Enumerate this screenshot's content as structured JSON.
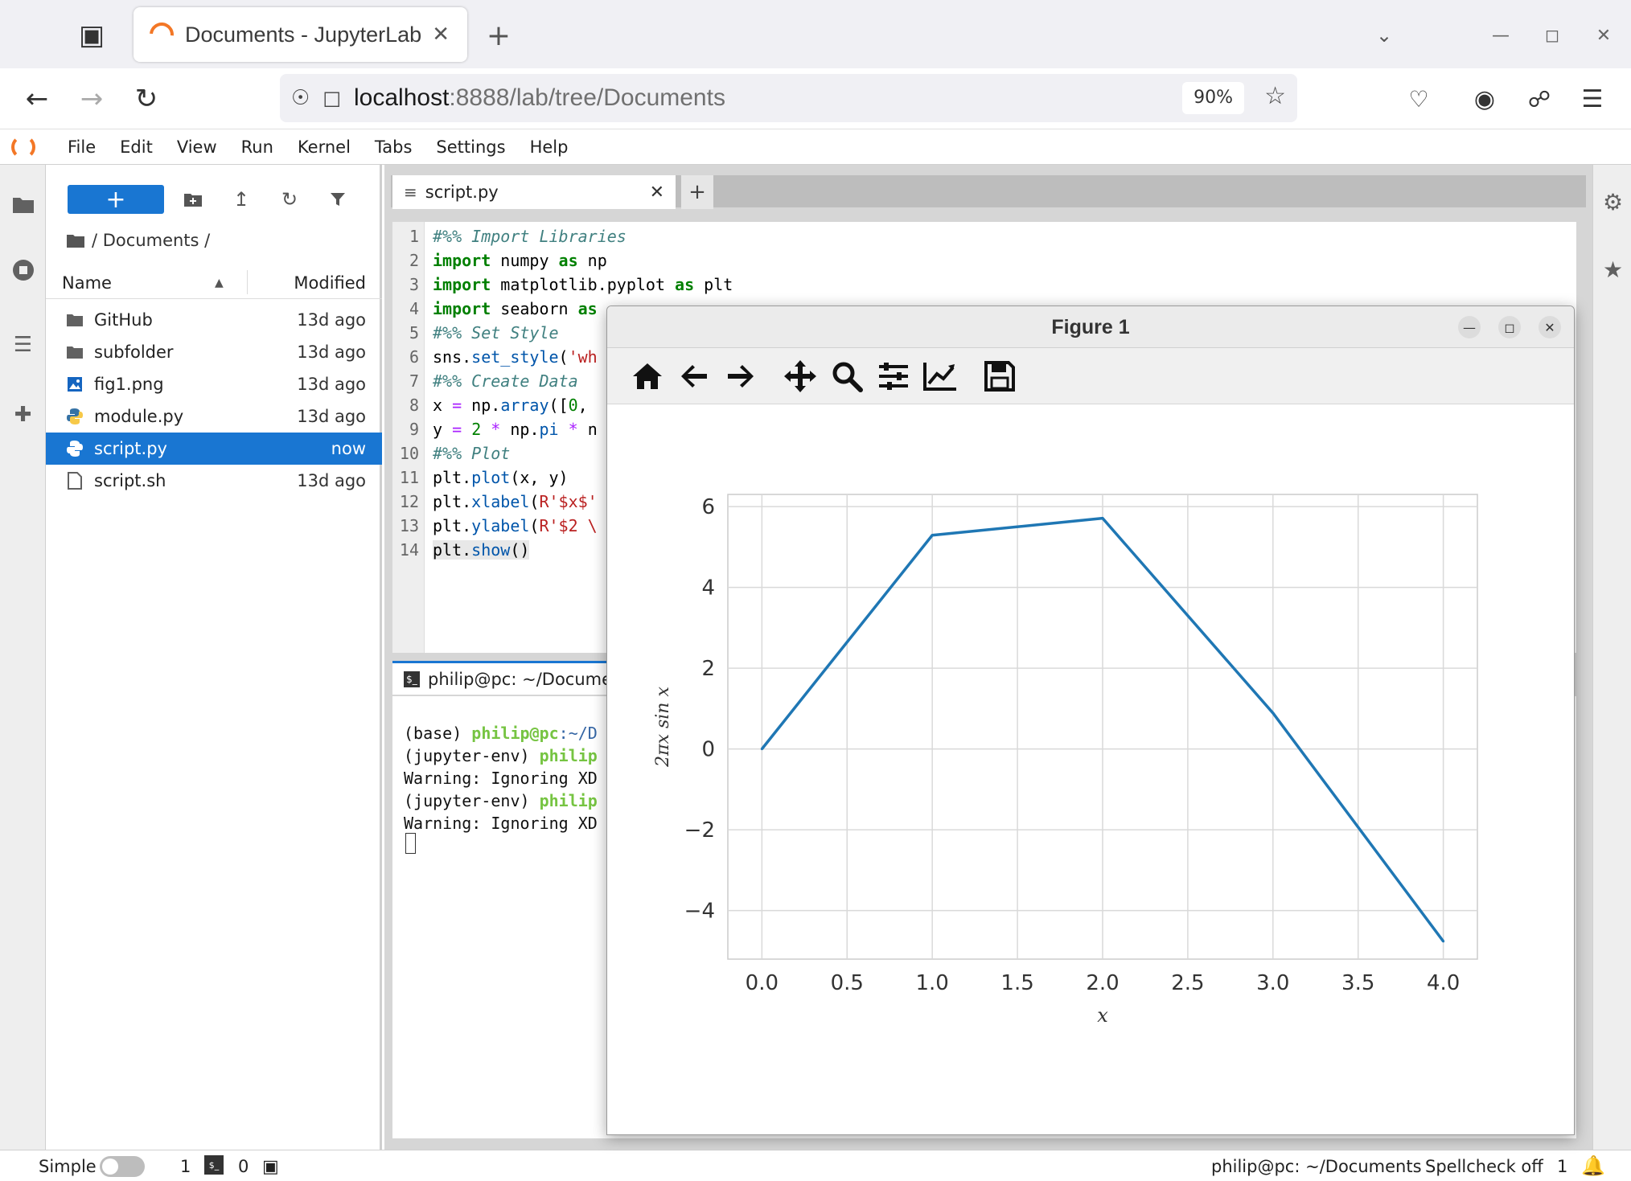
{
  "browser": {
    "tab_title": "Documents - JupyterLab",
    "url_host": "localhost",
    "url_rest": ":8888/lab/tree/Documents",
    "zoom": "90%"
  },
  "menu": [
    "File",
    "Edit",
    "View",
    "Run",
    "Kernel",
    "Tabs",
    "Settings",
    "Help"
  ],
  "filebrowser": {
    "new_label": "+",
    "breadcrumb": "/ Documents /",
    "col_name": "Name",
    "col_modified": "Modified",
    "files": [
      {
        "name": "GitHub",
        "modified": "13d ago",
        "icon": "folder-icon"
      },
      {
        "name": "subfolder",
        "modified": "13d ago",
        "icon": "folder-icon"
      },
      {
        "name": "fig1.png",
        "modified": "13d ago",
        "icon": "image-file-icon"
      },
      {
        "name": "module.py",
        "modified": "13d ago",
        "icon": "python-file-icon"
      },
      {
        "name": "script.py",
        "modified": "now",
        "icon": "python-file-icon",
        "selected": true
      },
      {
        "name": "script.sh",
        "modified": "13d ago",
        "icon": "text-file-icon"
      }
    ]
  },
  "editor": {
    "tab_title": "script.py",
    "line_numbers": [
      "1",
      "2",
      "3",
      "4",
      "5",
      "6",
      "7",
      "8",
      "9",
      "10",
      "11",
      "12",
      "13",
      "14"
    ]
  },
  "terminal": {
    "tab_title": "philip@pc: ~/Documen",
    "lines": [
      {
        "prefix": "(base) ",
        "user": "philip@pc",
        "path": ":~/D",
        "rest": ""
      },
      {
        "prefix": "(jupyter-env) ",
        "user": "philip",
        "path": "",
        "rest": ""
      },
      {
        "prefix": "Warning: Ignoring XD",
        "user": "",
        "path": "",
        "rest": ""
      },
      {
        "prefix": "(jupyter-env) ",
        "user": "philip",
        "path": "",
        "rest": ""
      },
      {
        "prefix": "Warning: Ignoring XD",
        "user": "",
        "path": "",
        "rest": ""
      }
    ]
  },
  "statusbar": {
    "mode": "Simple",
    "terminals_count": "1",
    "kernels_count": "0",
    "path": "philip@pc: ~/Documents",
    "spellcheck": "Spellcheck off",
    "notifications": "1"
  },
  "figure": {
    "window_title": "Figure 1",
    "toolbar": [
      "home-icon",
      "back-arrow-icon",
      "forward-arrow-icon",
      "pan-icon",
      "zoom-icon",
      "configure-subplots-icon",
      "edit-axis-icon",
      "save-icon"
    ]
  },
  "chart_data": {
    "type": "line",
    "x": [
      0.0,
      1.0,
      2.0,
      3.0,
      4.0
    ],
    "series": [
      {
        "values": [
          0.0,
          5.29,
          5.71,
          0.89,
          -4.76
        ],
        "color": "#1f77b4"
      }
    ],
    "xlabel": "x",
    "ylabel": "2πx sin x",
    "xlim": [
      -0.2,
      4.2
    ],
    "ylim": [
      -5.2,
      6.3
    ],
    "xticks": [
      "0.0",
      "0.5",
      "1.0",
      "1.5",
      "2.0",
      "2.5",
      "3.0",
      "3.5",
      "4.0"
    ],
    "yticks": [
      "−4",
      "−2",
      "0",
      "2",
      "4",
      "6"
    ],
    "grid": true
  }
}
